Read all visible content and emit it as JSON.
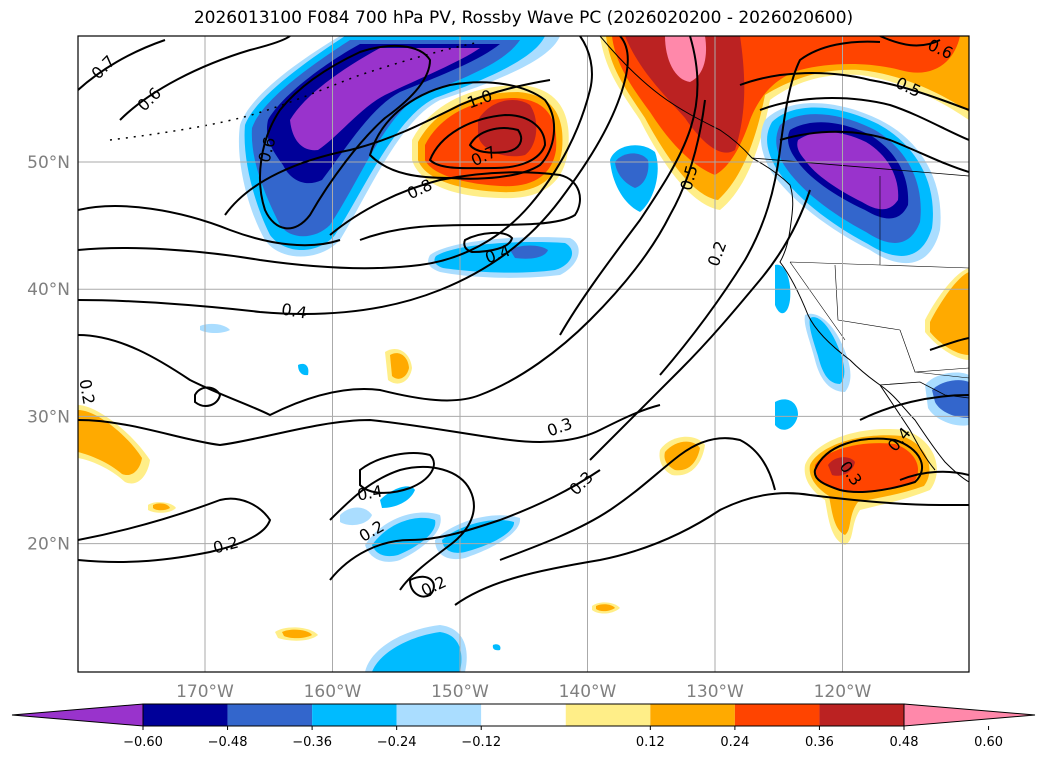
{
  "title": "2026013100 F084 700 hPa PV, Rossby Wave PC (2026020200 - 2026020600)",
  "colors": {
    "shade": [
      "#9933cc",
      "#000099",
      "#3366cc",
      "#00bbff",
      "#aaddff",
      "#ffffff",
      "#ffee88",
      "#ffaa00",
      "#ff4400",
      "#bb2222",
      "#ff88aa"
    ],
    "grid": "#aaaaaa",
    "contour": "#000000"
  },
  "map": {
    "lon_ticks": [
      {
        "value": -170,
        "label": "170°W"
      },
      {
        "value": -160,
        "label": "160°W"
      },
      {
        "value": -150,
        "label": "150°W"
      },
      {
        "value": -140,
        "label": "140°W"
      },
      {
        "value": -130,
        "label": "130°W"
      },
      {
        "value": -120,
        "label": "120°W"
      }
    ],
    "lat_ticks": [
      {
        "value": 20,
        "label": "20°N"
      },
      {
        "value": 30,
        "label": "30°N"
      },
      {
        "value": 40,
        "label": "40°N"
      },
      {
        "value": 50,
        "label": "50°N"
      }
    ],
    "contour_labels": [
      "0.7",
      "0.6",
      "0.6",
      "1.0",
      "0.7",
      "0.8",
      "0.6",
      "0.5",
      "0.5",
      "0.4",
      "0.2",
      "0.4",
      "0.2",
      "0.3",
      "0.3",
      "0.4",
      "0.2",
      "0.2",
      "0.2",
      "0.4",
      "0.3"
    ]
  },
  "colorbar": {
    "labels": [
      "−0.60",
      "−0.48",
      "−0.36",
      "−0.24",
      "−0.12",
      "0.12",
      "0.24",
      "0.36",
      "0.48",
      "0.60"
    ]
  }
}
